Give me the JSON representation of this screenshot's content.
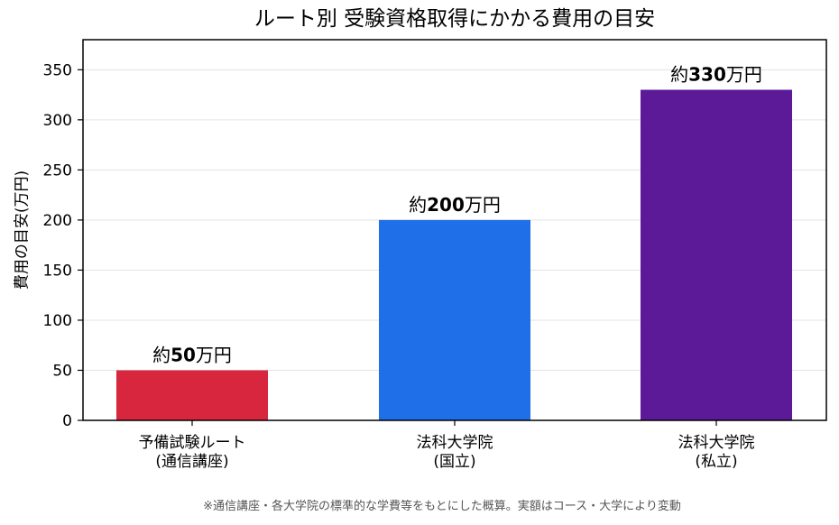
{
  "chart_data": {
    "type": "bar",
    "title": "ルート別 受験資格取得にかかる費用の目安",
    "xlabel": "",
    "ylabel": "費用の目安(万円)",
    "categories": [
      [
        "予備試験ルート",
        "(通信講座)"
      ],
      [
        "法科大学院",
        "(国立)"
      ],
      [
        "法科大学院",
        "(私立)"
      ]
    ],
    "values": [
      50,
      200,
      330
    ],
    "colors": [
      "#d7263d",
      "#1f6fe8",
      "#5c1a99"
    ],
    "data_labels": [
      {
        "prefix": "約",
        "number": "50",
        "suffix": "万円"
      },
      {
        "prefix": "約",
        "number": "200",
        "suffix": "万円"
      },
      {
        "prefix": "約",
        "number": "330",
        "suffix": "万円"
      }
    ],
    "ylim": [
      0,
      380
    ],
    "yticks": [
      0,
      50,
      100,
      150,
      200,
      250,
      300,
      350
    ],
    "grid": "y",
    "legend": "none"
  },
  "footnote": "※通信講座・各大学院の標準的な学費等をもとにした概算。実額はコース・大学により変動"
}
